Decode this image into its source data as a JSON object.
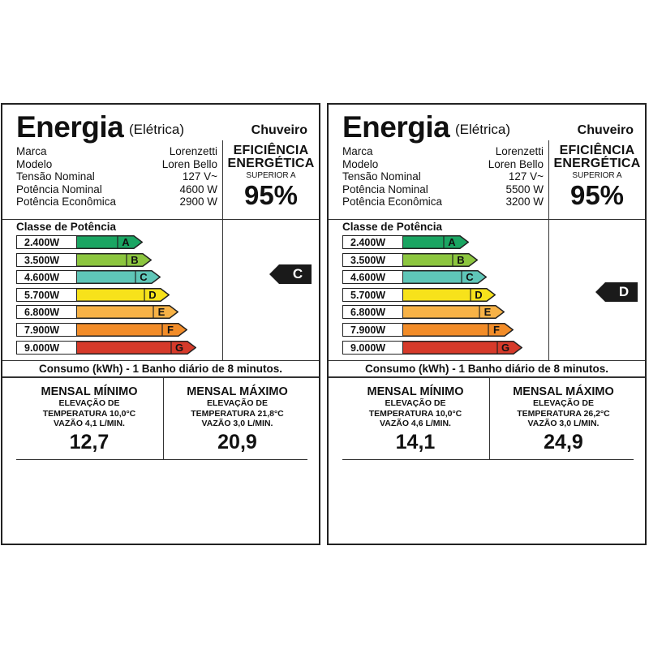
{
  "labels": [
    {
      "title": "Energia",
      "subtitle": "(Elétrica)",
      "product": "Chuveiro",
      "specs": [
        {
          "key": "Marca",
          "value": "Lorenzetti"
        },
        {
          "key": "Modelo",
          "value": "Loren Bello"
        },
        {
          "key": "Tensão Nominal",
          "value": "127 V~"
        },
        {
          "key": "Potência Nominal",
          "value": "4600 W"
        },
        {
          "key": "Potência Econômica",
          "value": "2900 W"
        }
      ],
      "efficiency": {
        "title_1": "EFICIÊNCIA",
        "title_2": "ENERGÉTICA",
        "sub": "SUPERIOR A",
        "value": "95%"
      },
      "power_class_title": "Classe de Potência",
      "power_classes": [
        {
          "power": "2.400W",
          "letter": "A"
        },
        {
          "power": "3.500W",
          "letter": "B"
        },
        {
          "power": "4.600W",
          "letter": "C"
        },
        {
          "power": "5.700W",
          "letter": "D"
        },
        {
          "power": "6.800W",
          "letter": "E"
        },
        {
          "power": "7.900W",
          "letter": "F"
        },
        {
          "power": "9.000W",
          "letter": "G"
        }
      ],
      "selected_class": "C",
      "consumption_title": "Consumo (kWh) - 1 Banho diário de 8 minutos.",
      "monthly_min": {
        "title": "MENSAL MÍNIMO",
        "line1": "ELEVAÇÃO DE",
        "line2": "TEMPERATURA 10,0°C",
        "line3": "VAZÃO 4,1 L/MIN.",
        "value": "12,7"
      },
      "monthly_max": {
        "title": "MENSAL MÁXIMO",
        "line1": "ELEVAÇÃO DE",
        "line2": "TEMPERATURA 21,8°C",
        "line3": "VAZÃO 3,0 L/MIN.",
        "value": "20,9"
      }
    },
    {
      "title": "Energia",
      "subtitle": "(Elétrica)",
      "product": "Chuveiro",
      "specs": [
        {
          "key": "Marca",
          "value": "Lorenzetti"
        },
        {
          "key": "Modelo",
          "value": "Loren Bello"
        },
        {
          "key": "Tensão Nominal",
          "value": "127 V~"
        },
        {
          "key": "Potência Nominal",
          "value": "5500 W"
        },
        {
          "key": "Potência Econômica",
          "value": "3200 W"
        }
      ],
      "efficiency": {
        "title_1": "EFICIÊNCIA",
        "title_2": "ENERGÉTICA",
        "sub": "SUPERIOR A",
        "value": "95%"
      },
      "power_class_title": "Classe de Potência",
      "power_classes": [
        {
          "power": "2.400W",
          "letter": "A"
        },
        {
          "power": "3.500W",
          "letter": "B"
        },
        {
          "power": "4.600W",
          "letter": "C"
        },
        {
          "power": "5.700W",
          "letter": "D"
        },
        {
          "power": "6.800W",
          "letter": "E"
        },
        {
          "power": "7.900W",
          "letter": "F"
        },
        {
          "power": "9.000W",
          "letter": "G"
        }
      ],
      "selected_class": "D",
      "consumption_title": "Consumo (kWh) - 1 Banho diário de 8 minutos.",
      "monthly_min": {
        "title": "MENSAL MÍNIMO",
        "line1": "ELEVAÇÃO DE",
        "line2": "TEMPERATURA 10,0°C",
        "line3": "VAZÃO 4,6 L/MIN.",
        "value": "14,1"
      },
      "monthly_max": {
        "title": "MENSAL MÁXIMO",
        "line1": "ELEVAÇÃO DE",
        "line2": "TEMPERATURA 26,2°C",
        "line3": "VAZÃO 3,0 L/MIN.",
        "value": "24,9"
      }
    }
  ],
  "class_colors": {
    "A": "#1aa562",
    "B": "#8cc63f",
    "C": "#5fc6b8",
    "D": "#f7e21b",
    "E": "#f7b246",
    "F": "#f28c28",
    "G": "#d63a2a"
  }
}
